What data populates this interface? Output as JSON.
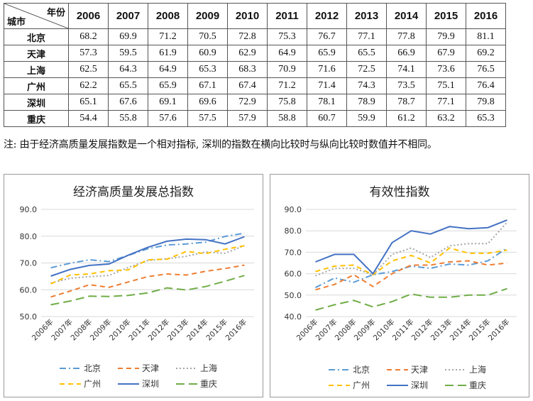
{
  "table": {
    "header_year_label": "年份",
    "header_city_label": "城市",
    "years": [
      "2006",
      "2007",
      "2008",
      "2009",
      "2010",
      "2011",
      "2012",
      "2013",
      "2014",
      "2015",
      "2016"
    ],
    "rows": [
      {
        "city": "北京",
        "values": [
          "68.2",
          "69.9",
          "71.2",
          "70.5",
          "72.8",
          "75.3",
          "76.7",
          "77.1",
          "77.8",
          "79.9",
          "81.1"
        ]
      },
      {
        "city": "天津",
        "values": [
          "57.3",
          "59.5",
          "61.9",
          "60.9",
          "62.9",
          "64.9",
          "65.9",
          "65.5",
          "66.9",
          "67.9",
          "69.2"
        ]
      },
      {
        "city": "上海",
        "values": [
          "62.5",
          "64.3",
          "64.9",
          "65.3",
          "68.3",
          "70.9",
          "71.6",
          "72.5",
          "74.1",
          "73.6",
          "76.5"
        ]
      },
      {
        "city": "广州",
        "values": [
          "62.2",
          "65.5",
          "65.9",
          "67.1",
          "67.4",
          "71.2",
          "71.4",
          "74.3",
          "73.5",
          "75.1",
          "76.4"
        ]
      },
      {
        "city": "深圳",
        "values": [
          "65.1",
          "67.6",
          "69.1",
          "69.6",
          "72.9",
          "75.8",
          "78.1",
          "78.9",
          "78.7",
          "77.1",
          "79.8"
        ]
      },
      {
        "city": "重庆",
        "values": [
          "54.4",
          "55.8",
          "57.6",
          "57.5",
          "57.9",
          "58.8",
          "60.7",
          "59.9",
          "61.2",
          "63.2",
          "65.3"
        ]
      }
    ]
  },
  "note": "注: 由于经济高质量发展指数是一个相对指标, 深圳的指数在横向比较时与纵向比较时数值并不相同。",
  "chart_data": [
    {
      "type": "line",
      "title": "经济高质量发展总指数",
      "x": [
        "2006年",
        "2007年",
        "2008年",
        "2009年",
        "2010年",
        "2011年",
        "2012年",
        "2013年",
        "2014年",
        "2015年",
        "2016年"
      ],
      "ylim": [
        50,
        90
      ],
      "yticks": [
        "50.0",
        "60.0",
        "70.0",
        "80.0",
        "90.0"
      ],
      "grid": true,
      "legend_position": "bottom",
      "series": [
        {
          "name": "北京",
          "color": "#5b9bd5",
          "dash": "dashdot",
          "values": [
            68.2,
            69.9,
            71.2,
            70.5,
            72.8,
            75.3,
            76.7,
            77.1,
            77.8,
            79.9,
            81.1
          ]
        },
        {
          "name": "天津",
          "color": "#ed7d31",
          "dash": "dash",
          "values": [
            57.3,
            59.5,
            61.9,
            60.9,
            62.9,
            64.9,
            65.9,
            65.5,
            66.9,
            67.9,
            69.2
          ]
        },
        {
          "name": "上海",
          "color": "#a5a5a5",
          "dash": "dot",
          "values": [
            62.5,
            64.3,
            64.9,
            65.3,
            68.3,
            70.9,
            71.6,
            72.5,
            74.1,
            73.6,
            76.5
          ]
        },
        {
          "name": "广州",
          "color": "#ffc000",
          "dash": "dash",
          "values": [
            62.2,
            65.5,
            65.9,
            67.1,
            67.4,
            71.2,
            71.4,
            74.3,
            73.5,
            75.1,
            76.4
          ]
        },
        {
          "name": "深圳",
          "color": "#4472c4",
          "dash": "solid",
          "values": [
            65.1,
            67.6,
            69.1,
            69.6,
            72.9,
            75.8,
            78.1,
            78.9,
            78.7,
            77.1,
            79.8
          ]
        },
        {
          "name": "重庆",
          "color": "#70ad47",
          "dash": "longdash",
          "values": [
            54.4,
            55.8,
            57.6,
            57.5,
            57.9,
            58.8,
            60.7,
            59.9,
            61.2,
            63.2,
            65.3
          ]
        }
      ]
    },
    {
      "type": "line",
      "title": "有效性指数",
      "x": [
        "2006年",
        "2007年",
        "2008年",
        "2009年",
        "2010年",
        "2011年",
        "2012年",
        "2013年",
        "2014年",
        "2015年",
        "2016年"
      ],
      "ylim": [
        40,
        90
      ],
      "yticks": [
        "40.0",
        "50.0",
        "60.0",
        "70.0",
        "80.0",
        "90.0"
      ],
      "grid": true,
      "legend_position": "bottom",
      "series": [
        {
          "name": "北京",
          "color": "#5b9bd5",
          "dash": "dashdot",
          "values": [
            53.5,
            58,
            56,
            59.5,
            61,
            63.5,
            62.5,
            64.5,
            64,
            66,
            72
          ]
        },
        {
          "name": "天津",
          "color": "#ed7d31",
          "dash": "dash",
          "values": [
            52.5,
            55,
            59.5,
            54,
            60,
            64,
            64,
            65.5,
            66,
            64,
            65
          ]
        },
        {
          "name": "上海",
          "color": "#a5a5a5",
          "dash": "dot",
          "values": [
            59,
            62.5,
            62.5,
            59.5,
            69,
            72,
            67.5,
            73,
            74,
            74,
            84
          ]
        },
        {
          "name": "广州",
          "color": "#ffc000",
          "dash": "dash",
          "values": [
            61,
            63.5,
            64,
            59.5,
            66,
            68.5,
            65,
            72,
            69.5,
            69.5,
            71
          ]
        },
        {
          "name": "深圳",
          "color": "#4472c4",
          "dash": "solid",
          "values": [
            65.5,
            69,
            69,
            60,
            74.5,
            80,
            78.5,
            82,
            81,
            81.5,
            85
          ]
        },
        {
          "name": "重庆",
          "color": "#70ad47",
          "dash": "longdash",
          "values": [
            43,
            45.5,
            47.5,
            44.5,
            47,
            50.5,
            49,
            49,
            50,
            50,
            53
          ]
        }
      ]
    }
  ]
}
